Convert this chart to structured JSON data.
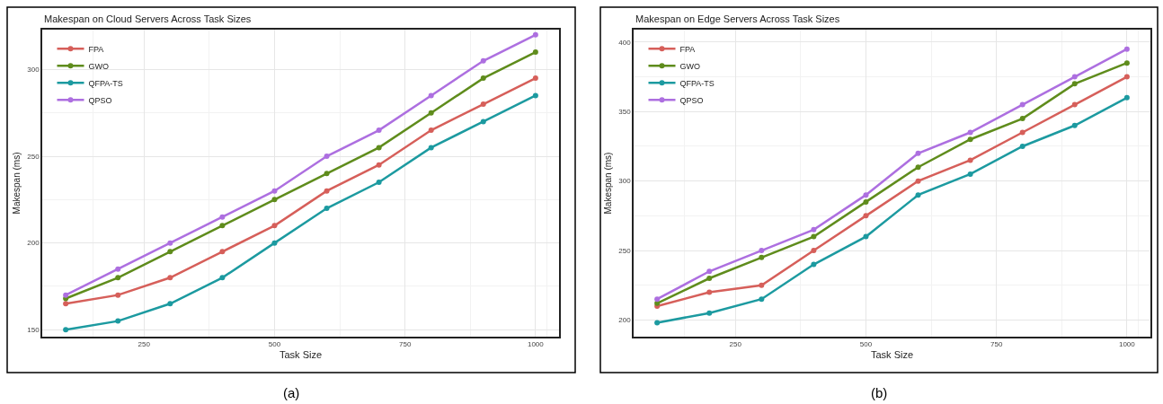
{
  "chart_data": [
    {
      "type": "line",
      "title": "Makespan on Cloud Servers Across Task Sizes",
      "xlabel": "Task Size",
      "ylabel": "Makespan (ms)",
      "annotations": [
        "(a)"
      ],
      "x": [
        100,
        200,
        300,
        400,
        500,
        600,
        700,
        800,
        900,
        1000
      ],
      "xlim": [
        55,
        1045
      ],
      "xticks": [
        250,
        500,
        750,
        1000
      ],
      "ylim": [
        146,
        323
      ],
      "yticks": [
        150,
        200,
        250,
        300
      ],
      "grid": true,
      "legend": "top left",
      "marker": "circle",
      "line_style": "solid",
      "series": [
        {
          "name": "FPA",
          "color": "#d65f5a",
          "values": [
            165,
            170,
            180,
            195,
            210,
            230,
            245,
            265,
            280,
            295
          ]
        },
        {
          "name": "GWO",
          "color": "#5f8c1c",
          "values": [
            168,
            180,
            195,
            210,
            225,
            240,
            255,
            275,
            295,
            310
          ]
        },
        {
          "name": "QFPA-TS",
          "color": "#1c9aa0",
          "values": [
            150,
            155,
            165,
            180,
            200,
            220,
            235,
            255,
            270,
            285
          ]
        },
        {
          "name": "QPSO",
          "color": "#ad6fe0",
          "values": [
            170,
            185,
            200,
            215,
            230,
            250,
            265,
            285,
            305,
            320
          ]
        }
      ]
    },
    {
      "type": "line",
      "title": "Makespan on Edge Servers Across Task Sizes",
      "xlabel": "Task Size",
      "ylabel": "Makespan (ms)",
      "annotations": [
        "(b)"
      ],
      "x": [
        100,
        200,
        300,
        400,
        500,
        600,
        700,
        800,
        900,
        1000
      ],
      "xlim": [
        55,
        1045
      ],
      "xticks": [
        250,
        500,
        750,
        1000
      ],
      "ylim": [
        188,
        409
      ],
      "yticks": [
        200,
        250,
        300,
        350,
        400
      ],
      "grid": true,
      "legend": "top left",
      "marker": "circle",
      "line_style": "solid",
      "series": [
        {
          "name": "FPA",
          "color": "#d65f5a",
          "values": [
            210,
            220,
            225,
            250,
            275,
            300,
            315,
            335,
            355,
            375
          ]
        },
        {
          "name": "GWO",
          "color": "#5f8c1c",
          "values": [
            212,
            230,
            245,
            260,
            285,
            310,
            330,
            345,
            370,
            385
          ]
        },
        {
          "name": "QFPA-TS",
          "color": "#1c9aa0",
          "values": [
            198,
            205,
            215,
            240,
            260,
            290,
            305,
            325,
            340,
            360
          ]
        },
        {
          "name": "QPSO",
          "color": "#ad6fe0",
          "values": [
            215,
            235,
            250,
            265,
            290,
            320,
            335,
            355,
            375,
            395
          ]
        }
      ]
    }
  ]
}
